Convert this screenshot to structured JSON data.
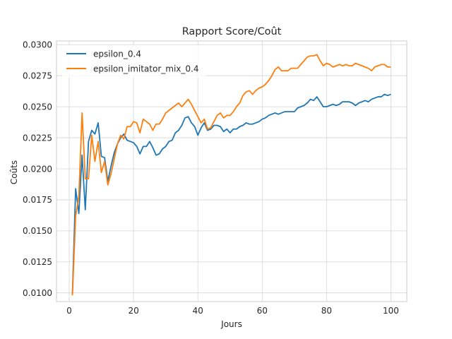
{
  "chart_data": {
    "type": "line",
    "title": "Rapport Score/Coût",
    "xlabel": "Jours",
    "ylabel": "Coûts",
    "xlim": [
      -3.95,
      104.95
    ],
    "ylim": [
      0.0093,
      0.0303
    ],
    "xticks": [
      0,
      20,
      40,
      60,
      80,
      100
    ],
    "xtick_labels": [
      "0",
      "20",
      "40",
      "60",
      "80",
      "100"
    ],
    "yticks": [
      0.01,
      0.0125,
      0.015,
      0.0175,
      0.02,
      0.0225,
      0.025,
      0.0275,
      0.03
    ],
    "ytick_labels": [
      "0.0100",
      "0.0125",
      "0.0150",
      "0.0175",
      "0.0200",
      "0.0225",
      "0.0250",
      "0.0275",
      "0.0300"
    ],
    "grid": true,
    "legend_position": "top-left",
    "x": [
      1,
      2,
      3,
      4,
      5,
      6,
      7,
      8,
      9,
      10,
      11,
      12,
      13,
      14,
      15,
      16,
      17,
      18,
      19,
      20,
      21,
      22,
      23,
      24,
      25,
      26,
      27,
      28,
      29,
      30,
      31,
      32,
      33,
      34,
      35,
      36,
      37,
      38,
      39,
      40,
      41,
      42,
      43,
      44,
      45,
      46,
      47,
      48,
      49,
      50,
      51,
      52,
      53,
      54,
      55,
      56,
      57,
      58,
      59,
      60,
      61,
      62,
      63,
      64,
      65,
      66,
      67,
      68,
      69,
      70,
      71,
      72,
      73,
      74,
      75,
      76,
      77,
      78,
      79,
      80,
      81,
      82,
      83,
      84,
      85,
      86,
      87,
      88,
      89,
      90,
      91,
      92,
      93,
      94,
      95,
      96,
      97,
      98,
      99,
      100
    ],
    "series": [
      {
        "name": "epsilon_0.4",
        "color": "#1f77b4",
        "values": [
          0.0099,
          0.0184,
          0.0164,
          0.0211,
          0.0167,
          0.0222,
          0.0231,
          0.0228,
          0.0237,
          0.021,
          0.0209,
          0.019,
          0.0202,
          0.0213,
          0.022,
          0.0225,
          0.0228,
          0.0223,
          0.0222,
          0.0221,
          0.0218,
          0.0212,
          0.0218,
          0.0218,
          0.0222,
          0.0217,
          0.0211,
          0.0212,
          0.0216,
          0.0218,
          0.0222,
          0.0223,
          0.0229,
          0.0231,
          0.0235,
          0.0241,
          0.0242,
          0.0237,
          0.0234,
          0.0227,
          0.0233,
          0.0237,
          0.0231,
          0.0232,
          0.0235,
          0.0235,
          0.0234,
          0.023,
          0.0232,
          0.0229,
          0.0232,
          0.0232,
          0.0234,
          0.0235,
          0.0237,
          0.0236,
          0.0236,
          0.0237,
          0.0238,
          0.024,
          0.0241,
          0.0243,
          0.0244,
          0.0245,
          0.0244,
          0.0245,
          0.0246,
          0.0246,
          0.0246,
          0.0246,
          0.0249,
          0.025,
          0.0251,
          0.0253,
          0.0256,
          0.0255,
          0.0258,
          0.0254,
          0.025,
          0.025,
          0.0251,
          0.0252,
          0.0251,
          0.0252,
          0.0254,
          0.0254,
          0.0254,
          0.0253,
          0.0251,
          0.0253,
          0.0254,
          0.0255,
          0.0254,
          0.0256,
          0.0257,
          0.0258,
          0.0258,
          0.026,
          0.0259,
          0.026
        ]
      },
      {
        "name": "epsilon_imitator_mix_0.4",
        "color": "#ff7f0e",
        "values": [
          0.0098,
          0.0162,
          0.0178,
          0.0245,
          0.0192,
          0.0192,
          0.0227,
          0.0206,
          0.0222,
          0.0197,
          0.0206,
          0.0187,
          0.0196,
          0.0208,
          0.022,
          0.0227,
          0.0224,
          0.0234,
          0.0234,
          0.0238,
          0.0237,
          0.0229,
          0.024,
          0.0238,
          0.0236,
          0.0231,
          0.0236,
          0.0236,
          0.024,
          0.0245,
          0.0247,
          0.0249,
          0.0251,
          0.0253,
          0.025,
          0.0253,
          0.0256,
          0.0252,
          0.0247,
          0.0242,
          0.0237,
          0.024,
          0.0232,
          0.0233,
          0.0238,
          0.0243,
          0.0245,
          0.0241,
          0.0243,
          0.0243,
          0.0246,
          0.025,
          0.0253,
          0.0259,
          0.0262,
          0.0263,
          0.026,
          0.0263,
          0.0265,
          0.0266,
          0.0268,
          0.0271,
          0.0275,
          0.028,
          0.0282,
          0.0279,
          0.0279,
          0.0279,
          0.0281,
          0.0281,
          0.0281,
          0.0284,
          0.0287,
          0.029,
          0.0291,
          0.0291,
          0.0292,
          0.0287,
          0.0283,
          0.0285,
          0.0284,
          0.0282,
          0.0283,
          0.0284,
          0.0283,
          0.0284,
          0.0283,
          0.0283,
          0.0285,
          0.0284,
          0.0283,
          0.0282,
          0.0281,
          0.0279,
          0.0282,
          0.0283,
          0.0284,
          0.0284,
          0.0282,
          0.0282
        ]
      }
    ]
  }
}
